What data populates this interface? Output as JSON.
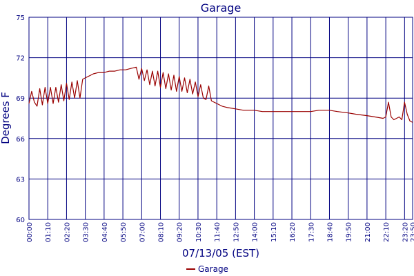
{
  "chart_data": {
    "type": "line",
    "title": "Garage",
    "xlabel": "07/13/05 (EST)",
    "ylabel": "Degrees F",
    "ylim": [
      60,
      75
    ],
    "yticks": [
      60,
      63,
      66,
      69,
      72,
      75
    ],
    "xlim": [
      "00:00",
      "23:50"
    ],
    "xticks": [
      "00:00",
      "01:10",
      "02:20",
      "03:30",
      "04:40",
      "05:50",
      "07:00",
      "08:10",
      "09:20",
      "10:30",
      "11:40",
      "12:50",
      "14:00",
      "15:10",
      "16:20",
      "17:30",
      "18:40",
      "19:50",
      "21:00",
      "22:10",
      "23:20",
      "23:50"
    ],
    "grid": true,
    "legend_position": "bottom",
    "colors": {
      "series": "#990000",
      "grid": "#000080",
      "text": "#000080"
    },
    "series": [
      {
        "name": "Garage",
        "x": [
          "00:00",
          "00:10",
          "00:20",
          "00:30",
          "00:40",
          "00:50",
          "01:00",
          "01:10",
          "01:20",
          "01:30",
          "01:40",
          "01:50",
          "02:00",
          "02:10",
          "02:20",
          "02:30",
          "02:40",
          "02:50",
          "03:00",
          "03:10",
          "03:20",
          "03:30",
          "03:40",
          "03:50",
          "04:00",
          "04:20",
          "04:40",
          "05:00",
          "05:20",
          "05:40",
          "06:00",
          "06:20",
          "06:40",
          "06:50",
          "07:00",
          "07:10",
          "07:20",
          "07:30",
          "07:40",
          "07:50",
          "08:00",
          "08:10",
          "08:20",
          "08:30",
          "08:40",
          "08:50",
          "09:00",
          "09:10",
          "09:20",
          "09:30",
          "09:40",
          "09:50",
          "10:00",
          "10:10",
          "10:20",
          "10:30",
          "10:40",
          "10:50",
          "11:00",
          "11:10",
          "11:20",
          "11:30",
          "11:40",
          "11:50",
          "12:00",
          "12:20",
          "12:50",
          "13:20",
          "14:00",
          "14:30",
          "15:10",
          "15:50",
          "16:20",
          "16:50",
          "17:30",
          "18:00",
          "18:40",
          "19:10",
          "19:50",
          "20:20",
          "21:00",
          "21:30",
          "22:00",
          "22:10",
          "22:20",
          "22:30",
          "22:40",
          "22:50",
          "23:00",
          "23:10",
          "23:20",
          "23:30",
          "23:40",
          "23:50"
        ],
        "values": [
          68.6,
          69.5,
          68.7,
          68.4,
          69.7,
          68.5,
          69.8,
          68.6,
          69.8,
          68.6,
          69.8,
          68.7,
          70.0,
          68.8,
          70.1,
          68.9,
          70.2,
          69.0,
          70.3,
          69.0,
          70.4,
          70.5,
          70.6,
          70.7,
          70.8,
          70.9,
          70.9,
          71.0,
          71.0,
          71.1,
          71.1,
          71.2,
          71.3,
          70.4,
          71.2,
          70.3,
          71.1,
          70.0,
          71.0,
          69.9,
          71.0,
          69.8,
          70.9,
          69.7,
          70.8,
          69.6,
          70.7,
          69.5,
          70.6,
          69.5,
          70.5,
          69.4,
          70.4,
          69.3,
          70.2,
          69.1,
          70.0,
          69.0,
          68.9,
          69.9,
          68.8,
          68.7,
          68.6,
          68.5,
          68.4,
          68.3,
          68.2,
          68.1,
          68.1,
          68.0,
          68.0,
          68.0,
          68.0,
          68.0,
          68.0,
          68.1,
          68.1,
          68.0,
          67.9,
          67.8,
          67.7,
          67.6,
          67.5,
          67.6,
          68.7,
          67.6,
          67.4,
          67.5,
          67.6,
          67.4,
          68.7,
          67.8,
          67.3,
          67.2
        ]
      }
    ]
  }
}
